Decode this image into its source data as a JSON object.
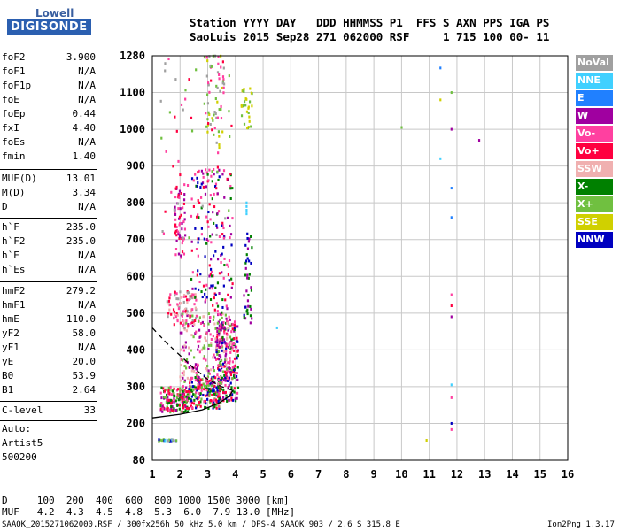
{
  "logo": {
    "line1": "Lowell",
    "line2": "DIGISONDE"
  },
  "header": {
    "line1": "Station YYYY DAY   DDD HHMMSS P1  FFS S AXN PPS IGA PS",
    "line2": "SaoLuis 2015 Sep28 271 062000 RSF     1 715 100 00- 11"
  },
  "params_a": [
    {
      "name": "foF2",
      "value": "3.900"
    },
    {
      "name": "foF1",
      "value": "N/A"
    },
    {
      "name": "foF1p",
      "value": "N/A"
    },
    {
      "name": "foE",
      "value": "N/A"
    },
    {
      "name": "foEp",
      "value": "0.44"
    },
    {
      "name": "fxI",
      "value": "4.40"
    },
    {
      "name": "foEs",
      "value": "N/A"
    },
    {
      "name": "fmin",
      "value": "1.40"
    }
  ],
  "params_b": [
    {
      "name": "MUF(D)",
      "value": "13.01"
    },
    {
      "name": "M(D)",
      "value": "3.34"
    },
    {
      "name": "D",
      "value": "N/A"
    }
  ],
  "params_c": [
    {
      "name": "h`F",
      "value": "235.0"
    },
    {
      "name": "h`F2",
      "value": "235.0"
    },
    {
      "name": "h`E",
      "value": "N/A"
    },
    {
      "name": "h`Es",
      "value": "N/A"
    }
  ],
  "params_d": [
    {
      "name": "hmF2",
      "value": "279.2"
    },
    {
      "name": "hmF1",
      "value": "N/A"
    },
    {
      "name": "hmE",
      "value": "110.0"
    },
    {
      "name": "yF2",
      "value": "58.0"
    },
    {
      "name": "yF1",
      "value": "N/A"
    },
    {
      "name": "yE",
      "value": "20.0"
    },
    {
      "name": "B0",
      "value": "53.9"
    },
    {
      "name": "B1",
      "value": "2.64"
    }
  ],
  "params_e": [
    {
      "name": "C-level",
      "value": "33"
    }
  ],
  "notes": [
    "Auto:",
    "Artist5",
    "500200"
  ],
  "legend": [
    {
      "label": "NoVal",
      "color": "#a0a0a0"
    },
    {
      "label": "NNE",
      "color": "#40d0ff"
    },
    {
      "label": "E",
      "color": "#2080ff"
    },
    {
      "label": "W",
      "color": "#a000a0"
    },
    {
      "label": "Vo-",
      "color": "#ff40a0"
    },
    {
      "label": "Vo+",
      "color": "#ff0040"
    },
    {
      "label": "SSW",
      "color": "#f0b0b0"
    },
    {
      "label": "X-",
      "color": "#008000"
    },
    {
      "label": "X+",
      "color": "#70c040"
    },
    {
      "label": "SSE",
      "color": "#d0d000"
    },
    {
      "label": "NNW",
      "color": "#0000c0"
    }
  ],
  "footer": {
    "d_row": "D     100  200  400  600  800 1000 1500 3000 [km]",
    "muf_row": "MUF   4.2  4.3  4.5  4.8  5.3  6.0  7.9 13.0 [MHz]",
    "file_row": "SAAOK_2015271062000.RSF / 300fx256h 50 kHz 5.0 km / DPS-4 SAAOK 903 / 2.6 S 315.8 E",
    "version": "Ion2Png 1.3.17"
  },
  "chart_data": {
    "type": "scatter",
    "title": "",
    "xlabel": "",
    "ylabel": "",
    "xlim": [
      1,
      16
    ],
    "ylim": [
      80,
      1280
    ],
    "x_ticks": [
      "1",
      "2",
      "3",
      "4",
      "5",
      "6",
      "7",
      "8",
      "9",
      "10",
      "11",
      "12",
      "13",
      "14",
      "15",
      "16"
    ],
    "y_ticks": [
      "80",
      "200",
      "300",
      "400",
      "500",
      "600",
      "700",
      "800",
      "900",
      "1000",
      "1100",
      "1280"
    ],
    "y_tick_values": [
      80,
      200,
      300,
      400,
      500,
      600,
      700,
      800,
      900,
      1000,
      1100,
      1280
    ],
    "y_scale": "piecewise, tick labels evenly spaced",
    "grid": true,
    "legend_position": "right",
    "trace_curves": [
      {
        "points": [
          [
            1.0,
            215
          ],
          [
            2.0,
            225
          ],
          [
            2.8,
            237
          ],
          [
            3.4,
            255
          ],
          [
            3.8,
            275
          ],
          [
            3.9,
            290
          ]
        ]
      },
      {
        "points": [
          [
            1.0,
            460
          ],
          [
            1.5,
            420
          ],
          [
            2.0,
            385
          ],
          [
            2.5,
            350
          ],
          [
            3.0,
            320
          ],
          [
            3.5,
            300
          ],
          [
            3.9,
            290
          ]
        ]
      }
    ],
    "echo_clusters": [
      {
        "x": [
          1.3,
          2.3
        ],
        "y": [
          230,
          300
        ],
        "colors": [
          "#ff0040",
          "#ff40a0",
          "#008000",
          "#70c040",
          "#a000a0"
        ],
        "n": 170
      },
      {
        "x": [
          2.3,
          3.5
        ],
        "y": [
          240,
          330
        ],
        "colors": [
          "#ff0040",
          "#ff40a0",
          "#008000",
          "#70c040",
          "#0000c0"
        ],
        "n": 190
      },
      {
        "x": [
          3.3,
          4.1
        ],
        "y": [
          260,
          480
        ],
        "colors": [
          "#ff0040",
          "#ff40a0",
          "#a000a0",
          "#008000",
          "#0000c0"
        ],
        "n": 210
      },
      {
        "x": [
          2.0,
          3.9
        ],
        "y": [
          300,
          500
        ],
        "colors": [
          "#ff40a0",
          "#f0b0b0",
          "#70c040",
          "#a000a0"
        ],
        "n": 230
      },
      {
        "x": [
          1.5,
          2.6
        ],
        "y": [
          460,
          560
        ],
        "colors": [
          "#ff40a0",
          "#f0b0b0",
          "#ff0040",
          "#a0a0a0"
        ],
        "n": 90
      },
      {
        "x": [
          2.4,
          3.9
        ],
        "y": [
          500,
          900
        ],
        "colors": [
          "#ff40a0",
          "#ff0040",
          "#a000a0",
          "#008000",
          "#0000c0"
        ],
        "n": 170
      },
      {
        "x": [
          1.8,
          2.2
        ],
        "y": [
          650,
          850
        ],
        "colors": [
          "#ff40a0",
          "#ff0040",
          "#a000a0"
        ],
        "n": 60
      },
      {
        "x": [
          2.9,
          3.6
        ],
        "y": [
          950,
          1280
        ],
        "colors": [
          "#70c040",
          "#d0d000",
          "#ff40a0",
          "#a0a0a0"
        ],
        "n": 55
      },
      {
        "x": [
          4.2,
          4.6
        ],
        "y": [
          1000,
          1120
        ],
        "colors": [
          "#d0d000",
          "#70c040"
        ],
        "n": 30
      },
      {
        "x": [
          4.3,
          4.6
        ],
        "y": [
          470,
          720
        ],
        "colors": [
          "#0000c0",
          "#a000a0",
          "#008000"
        ],
        "n": 40
      },
      {
        "x": [
          1.2,
          1.9
        ],
        "y": [
          142,
          148
        ],
        "colors": [
          "#70c040",
          "#a0a0a0",
          "#0000c0",
          "#40d0ff"
        ],
        "n": 25
      },
      {
        "x": [
          1.3,
          3.9
        ],
        "y": [
          700,
          1280
        ],
        "colors": [
          "#ff40a0",
          "#a0a0a0",
          "#ff0040",
          "#70c040"
        ],
        "n": 70
      }
    ],
    "isolated_points": [
      {
        "x": 4.4,
        "y": 800,
        "color": "#40d0ff"
      },
      {
        "x": 4.4,
        "y": 790,
        "color": "#40d0ff"
      },
      {
        "x": 4.4,
        "y": 780,
        "color": "#40d0ff"
      },
      {
        "x": 4.4,
        "y": 770,
        "color": "#40d0ff"
      },
      {
        "x": 5.5,
        "y": 460,
        "color": "#40d0ff"
      },
      {
        "x": 10.0,
        "y": 1005,
        "color": "#70c040"
      },
      {
        "x": 10.9,
        "y": 145,
        "color": "#d0d000"
      },
      {
        "x": 11.4,
        "y": 1220,
        "color": "#2080ff"
      },
      {
        "x": 11.4,
        "y": 920,
        "color": "#40d0ff"
      },
      {
        "x": 11.4,
        "y": 1080,
        "color": "#d0d000"
      },
      {
        "x": 11.8,
        "y": 760,
        "color": "#2080ff"
      },
      {
        "x": 11.8,
        "y": 840,
        "color": "#2080ff"
      },
      {
        "x": 11.8,
        "y": 1000,
        "color": "#a000a0"
      },
      {
        "x": 11.8,
        "y": 1100,
        "color": "#70c040"
      },
      {
        "x": 11.8,
        "y": 550,
        "color": "#ff40a0"
      },
      {
        "x": 11.8,
        "y": 520,
        "color": "#ff0040"
      },
      {
        "x": 11.8,
        "y": 490,
        "color": "#a000a0"
      },
      {
        "x": 11.8,
        "y": 305,
        "color": "#40d0ff"
      },
      {
        "x": 11.8,
        "y": 270,
        "color": "#ff40a0"
      },
      {
        "x": 11.8,
        "y": 200,
        "color": "#0000c0"
      },
      {
        "x": 11.8,
        "y": 180,
        "color": "#ff40a0"
      },
      {
        "x": 12.8,
        "y": 970,
        "color": "#a000a0"
      }
    ]
  }
}
